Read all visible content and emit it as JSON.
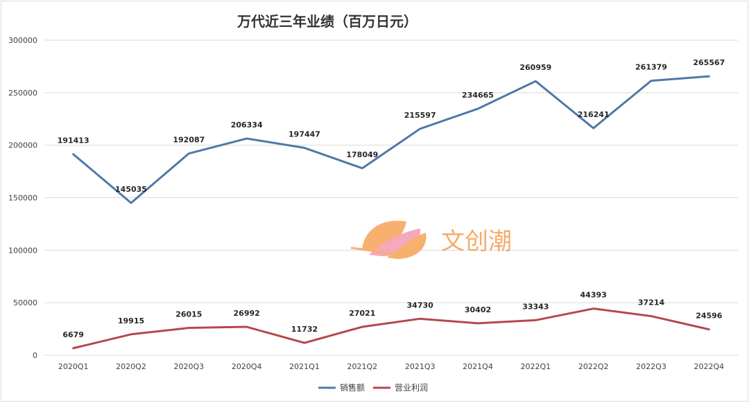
{
  "chart_data": {
    "type": "line",
    "title": "万代近三年业绩（百万日元）",
    "categories": [
      "2020Q1",
      "2020Q2",
      "2020Q3",
      "2020Q4",
      "2021Q1",
      "2021Q2",
      "2021Q3",
      "2021Q4",
      "2022Q1",
      "2022Q2",
      "2022Q3",
      "2022Q4"
    ],
    "series": [
      {
        "name": "销售额",
        "color": "#4e79a7",
        "values": [
          191413,
          145035,
          192087,
          206334,
          197447,
          178049,
          215597,
          234665,
          260959,
          216241,
          261379,
          265567
        ]
      },
      {
        "name": "营业利润",
        "color": "#b5474b",
        "values": [
          6679,
          19915,
          26015,
          26992,
          11732,
          27021,
          34730,
          30402,
          33343,
          44393,
          37214,
          24596
        ]
      }
    ],
    "ylim": [
      0,
      300000
    ],
    "yticks": [
      0,
      50000,
      100000,
      150000,
      200000,
      250000,
      300000
    ],
    "xlabel": "",
    "ylabel": "",
    "grid": true,
    "legend_position": "bottom"
  },
  "watermark": {
    "text": "文创潮",
    "color": "#f5a35c"
  }
}
